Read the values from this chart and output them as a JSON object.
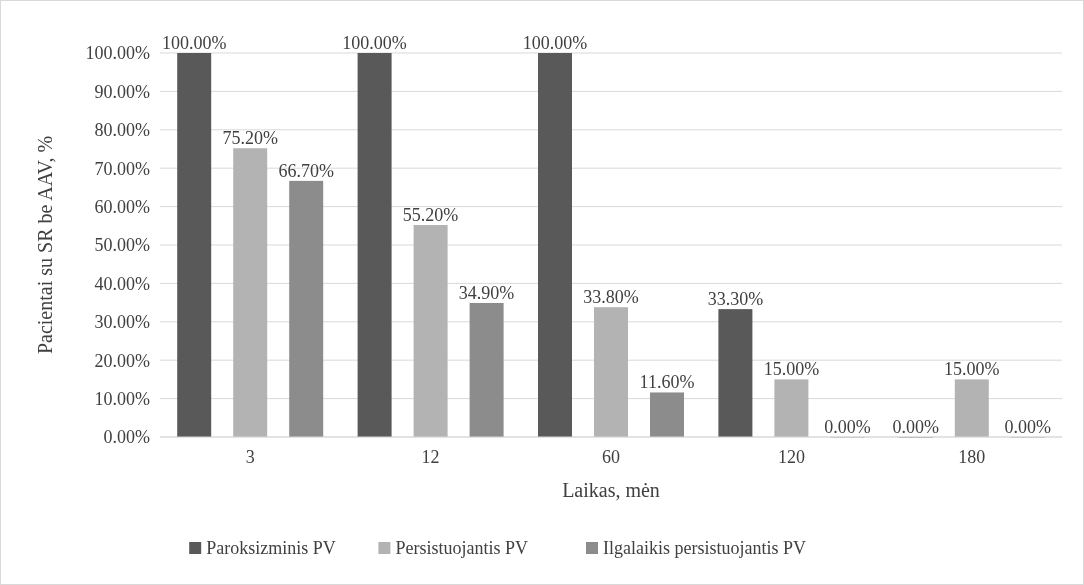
{
  "chart_data": {
    "type": "bar",
    "xlabel": "Laikas, mėn",
    "ylabel": "Pacientai su SR be AAV, %",
    "categories": [
      "3",
      "12",
      "60",
      "120",
      "180"
    ],
    "series": [
      {
        "name": "Paroksizminis PV",
        "color": "#595959",
        "values": [
          100,
          100,
          100,
          33.3,
          0
        ],
        "value_labels": [
          "100.00%",
          "100.00%",
          "100.00%",
          "33.30%",
          "0.00%"
        ]
      },
      {
        "name": "Persistuojantis PV",
        "color": "#b3b3b3",
        "values": [
          75.2,
          55.2,
          33.8,
          15,
          15
        ],
        "value_labels": [
          "75.20%",
          "55.20%",
          "33.80%",
          "15.00%",
          "15.00%"
        ]
      },
      {
        "name": "Ilgalaikis persistuojantis PV",
        "color": "#8c8c8c",
        "values": [
          66.7,
          34.9,
          11.6,
          0,
          0
        ],
        "value_labels": [
          "66.70%",
          "34.90%",
          "11.60%",
          "0.00%",
          "0.00%"
        ]
      }
    ],
    "ylim": [
      0,
      100
    ],
    "yticks": [
      {
        "value": 0,
        "label": "0.00%"
      },
      {
        "value": 10,
        "label": "10.00%"
      },
      {
        "value": 20,
        "label": "20.00%"
      },
      {
        "value": 30,
        "label": "30.00%"
      },
      {
        "value": 40,
        "label": "40.00%"
      },
      {
        "value": 50,
        "label": "50.00%"
      },
      {
        "value": 60,
        "label": "60.00%"
      },
      {
        "value": 70,
        "label": "70.00%"
      },
      {
        "value": 80,
        "label": "80.00%"
      },
      {
        "value": 90,
        "label": "90.00%"
      },
      {
        "value": 100,
        "label": "100.00%"
      }
    ],
    "grid": "y",
    "legend": "bottom"
  }
}
